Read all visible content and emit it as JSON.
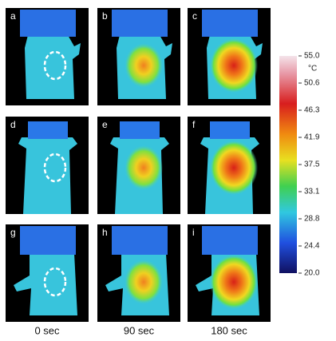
{
  "panels": [
    {
      "label": "a"
    },
    {
      "label": "b"
    },
    {
      "label": "c"
    },
    {
      "label": "d"
    },
    {
      "label": "e"
    },
    {
      "label": "f"
    },
    {
      "label": "g"
    },
    {
      "label": "h"
    },
    {
      "label": "i"
    }
  ],
  "time_labels": [
    "0 sec",
    "90 sec",
    "180 sec"
  ],
  "colorbar": {
    "unit": "°C",
    "ticks": [
      "55.0",
      "50.6",
      "46.3",
      "41.9",
      "37.5",
      "33.1",
      "28.8",
      "24.4",
      "20.0"
    ]
  }
}
